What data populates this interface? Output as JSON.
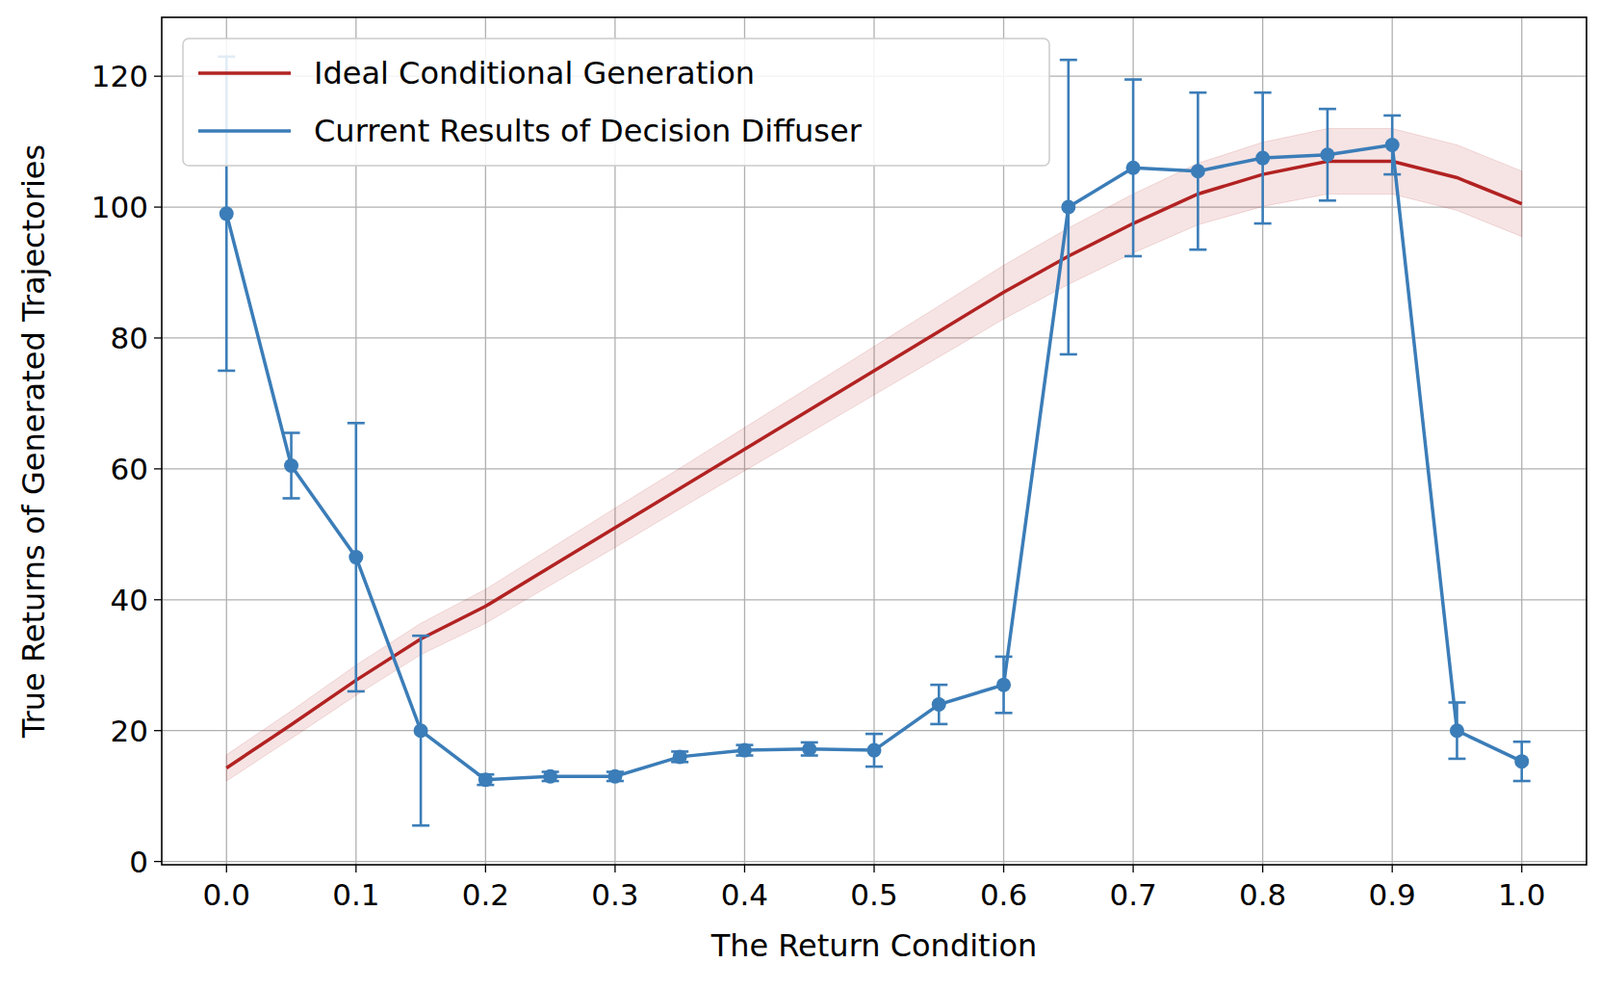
{
  "chart_data": {
    "type": "line",
    "x_label": "The Return Condition",
    "y_label": "True Returns of Generated Trajectories",
    "x": [
      0,
      0.05,
      0.1,
      0.15,
      0.2,
      0.25,
      0.3,
      0.35,
      0.4,
      0.45,
      0.5,
      0.55,
      0.6,
      0.65,
      0.7,
      0.75,
      0.8,
      0.85,
      0.9,
      0.95,
      1.0
    ],
    "series": [
      {
        "name": "Ideal Conditional Generation",
        "color": "#b22222",
        "marker": "none",
        "values": [
          14.3,
          20.9,
          27.7,
          34,
          39,
          45,
          51,
          57,
          63,
          69,
          75,
          81,
          87,
          92.5,
          97.5,
          102,
          105,
          107,
          107,
          104.5,
          100.5
        ],
        "errors": [
          2,
          2.1,
          2.3,
          2.4,
          2.6,
          2.8,
          3,
          3.1,
          3.3,
          3.5,
          3.7,
          3.9,
          4.1,
          4.3,
          4.5,
          4.7,
          4.9,
          5,
          5,
          5,
          5
        ]
      },
      {
        "name": "Current Results of Decision Diffuser",
        "color": "#3b7db8",
        "marker": "circle",
        "values": [
          99,
          60.5,
          46.5,
          20,
          12.5,
          13,
          13,
          16,
          17,
          17.2,
          17,
          24,
          27,
          100,
          106,
          105.5,
          107.5,
          108,
          109.5,
          20,
          15.3
        ],
        "errors": [
          24,
          5,
          20.5,
          14.5,
          0.8,
          0.7,
          0.7,
          0.8,
          0.8,
          1,
          2.5,
          3,
          4.3,
          22.5,
          13.5,
          12,
          10,
          7,
          4.5,
          4.3,
          3
        ]
      }
    ],
    "xlim": [
      -0.05,
      1.05
    ],
    "ylim": [
      -0.5,
      129
    ],
    "xticks": [
      {
        "value": 0,
        "label": "0.0"
      },
      0.1,
      0.2,
      0.3,
      0.4,
      0.5,
      0.6,
      0.7,
      0.8,
      0.9,
      {
        "value": 1,
        "label": "1.0"
      }
    ],
    "yticks": [
      0,
      20,
      40,
      60,
      80,
      100,
      120
    ],
    "grid": true,
    "legend": "upper left"
  }
}
